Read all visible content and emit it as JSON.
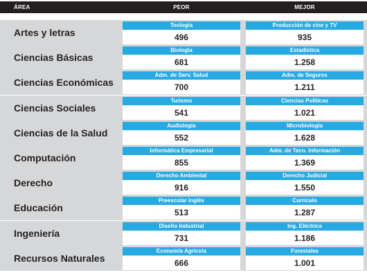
{
  "header": {
    "area": "ÁREA",
    "peor": "PEOR",
    "mejor": "MEJOR"
  },
  "colors": {
    "header_bg": "#231f20",
    "row_bg": "#d6d7d8",
    "label_bg": "#27aae1"
  },
  "rows": [
    {
      "area": "Artes y letras",
      "peor_label": "Teología",
      "peor_value": "496",
      "mejor_label": "Producción de cine y TV",
      "mejor_value": "935"
    },
    {
      "area": "Ciencias Básicas",
      "peor_label": "Biología",
      "peor_value": "681",
      "mejor_label": "Estadística",
      "mejor_value": "1.258"
    },
    {
      "area": "Ciencias Económicas",
      "peor_label": "Adm. de Serv. Salud",
      "peor_value": "700",
      "mejor_label": "Adm. de Seguros",
      "mejor_value": "1.211"
    },
    {
      "area": "Ciencias Sociales",
      "peor_label": "Turismo",
      "peor_value": "541",
      "mejor_label": "Ciencias Políticas",
      "mejor_value": "1.021"
    },
    {
      "area": "Ciencias de la Salud",
      "peor_label": "Audiología",
      "peor_value": "552",
      "mejor_label": "Microbiología",
      "mejor_value": "1.628"
    },
    {
      "area": "Computación",
      "peor_label": "Informática Empresarial",
      "peor_value": "855",
      "mejor_label": "Adm. de Tecn. Información",
      "mejor_value": "1.369"
    },
    {
      "area": "Derecho",
      "peor_label": "Derecho Ambiental",
      "peor_value": "916",
      "mejor_label": "Derecho Judicial",
      "mejor_value": "1.550"
    },
    {
      "area": "Educación",
      "peor_label": "Preescolar Inglés",
      "peor_value": "513",
      "mejor_label": "Currículo",
      "mejor_value": "1.287"
    },
    {
      "area": "Ingeniería",
      "peor_label": "Diseño Industrial",
      "peor_value": "731",
      "mejor_label": "Ing. Eléctrica",
      "mejor_value": "1.186"
    },
    {
      "area": "Recursos Naturales",
      "peor_label": "Economía Agrícola",
      "peor_value": "666",
      "mejor_label": "Forestales",
      "mejor_value": "1.001"
    }
  ]
}
